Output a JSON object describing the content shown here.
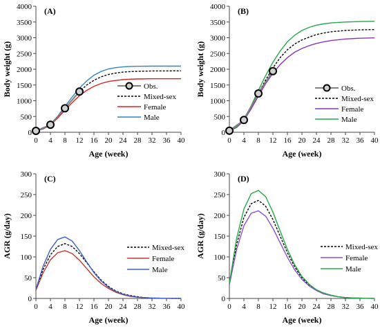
{
  "chart_data": [
    {
      "panel_label": "(A)",
      "type": "line",
      "xlabel": "Age (week)",
      "ylabel": "Body weight (g)",
      "xlim": [
        0,
        40
      ],
      "ylim": [
        0,
        4000
      ],
      "xticks": [
        "0",
        "4",
        "8",
        "12",
        "16",
        "20",
        "24",
        "28",
        "32",
        "36",
        "40"
      ],
      "yticks": [
        "0",
        "500",
        "1000",
        "1500",
        "2000",
        "2500",
        "3000",
        "3500",
        "4000"
      ],
      "legend_position": "bottom-right",
      "observations": {
        "name": "Obs.",
        "x": [
          0,
          4,
          8,
          12
        ],
        "y": [
          45,
          240,
          760,
          1290
        ],
        "color": "#808080"
      },
      "series": [
        {
          "name": "Mixed-sex",
          "x": [
            0,
            2,
            4,
            6,
            8,
            10,
            12,
            14,
            16,
            18,
            20,
            22,
            24,
            26,
            28,
            32,
            36,
            40
          ],
          "y": [
            45,
            110,
            240,
            480,
            760,
            1030,
            1290,
            1500,
            1650,
            1760,
            1835,
            1880,
            1910,
            1925,
            1935,
            1945,
            1948,
            1950
          ],
          "color": "#000000",
          "dash": true
        },
        {
          "name": "Female",
          "x": [
            0,
            2,
            4,
            6,
            8,
            10,
            12,
            14,
            16,
            18,
            20,
            22,
            24,
            26,
            28,
            32,
            36,
            40
          ],
          "y": [
            45,
            105,
            230,
            450,
            700,
            940,
            1160,
            1330,
            1460,
            1550,
            1610,
            1645,
            1670,
            1685,
            1692,
            1698,
            1700,
            1700
          ],
          "color": "#e02020",
          "dash": false
        },
        {
          "name": "Male",
          "x": [
            0,
            2,
            4,
            6,
            8,
            10,
            12,
            14,
            16,
            18,
            20,
            22,
            24,
            26,
            28,
            32,
            36,
            40
          ],
          "y": [
            45,
            115,
            255,
            510,
            820,
            1120,
            1400,
            1630,
            1810,
            1930,
            2010,
            2050,
            2075,
            2090,
            2095,
            2100,
            2100,
            2100
          ],
          "color": "#2f86c0",
          "dash": false
        }
      ]
    },
    {
      "panel_label": "(B)",
      "type": "line",
      "xlabel": "Age (week)",
      "ylabel": "Body weight (g)",
      "xlim": [
        0,
        40
      ],
      "ylim": [
        0,
        4000
      ],
      "xticks": [
        "0",
        "4",
        "8",
        "12",
        "16",
        "20",
        "24",
        "28",
        "32",
        "36",
        "40"
      ],
      "yticks": [
        "0",
        "500",
        "1000",
        "1500",
        "2000",
        "2500",
        "3000",
        "3500",
        "4000"
      ],
      "legend_position": "bottom-right",
      "observations": {
        "name": "Obs.",
        "x": [
          0,
          4,
          8,
          12
        ],
        "y": [
          50,
          390,
          1230,
          1940
        ],
        "color": "#808080"
      },
      "series": [
        {
          "name": "Mixed-sex",
          "x": [
            0,
            2,
            4,
            6,
            8,
            10,
            12,
            14,
            16,
            18,
            20,
            22,
            24,
            26,
            28,
            32,
            36,
            40
          ],
          "y": [
            50,
            160,
            390,
            780,
            1230,
            1660,
            2040,
            2370,
            2620,
            2800,
            2930,
            3020,
            3100,
            3150,
            3190,
            3230,
            3250,
            3260
          ],
          "color": "#000000",
          "dash": true
        },
        {
          "name": "Female",
          "x": [
            0,
            2,
            4,
            6,
            8,
            10,
            12,
            14,
            16,
            18,
            20,
            22,
            24,
            26,
            28,
            32,
            36,
            40
          ],
          "y": [
            50,
            150,
            370,
            740,
            1150,
            1540,
            1870,
            2150,
            2370,
            2540,
            2660,
            2750,
            2820,
            2870,
            2910,
            2960,
            2985,
            2995
          ],
          "color": "#8a35b8",
          "dash": false
        },
        {
          "name": "Male",
          "x": [
            0,
            2,
            4,
            6,
            8,
            10,
            12,
            14,
            16,
            18,
            20,
            22,
            24,
            26,
            28,
            32,
            36,
            40
          ],
          "y": [
            50,
            170,
            420,
            840,
            1330,
            1800,
            2220,
            2580,
            2870,
            3080,
            3230,
            3330,
            3400,
            3440,
            3470,
            3500,
            3515,
            3520
          ],
          "color": "#22aa44",
          "dash": false
        }
      ]
    },
    {
      "panel_label": "(C)",
      "type": "line",
      "xlabel": "Age (week)",
      "ylabel": "AGR (g/day)",
      "xlim": [
        0,
        40
      ],
      "ylim": [
        0,
        300
      ],
      "xticks": [
        "0",
        "4",
        "8",
        "12",
        "16",
        "20",
        "24",
        "28",
        "32",
        "36",
        "40"
      ],
      "yticks": [
        "0",
        "50",
        "100",
        "150",
        "200",
        "250",
        "300"
      ],
      "legend_position": "right",
      "series": [
        {
          "name": "Mixed-sex",
          "x": [
            0,
            2,
            4,
            6,
            8,
            10,
            12,
            14,
            16,
            18,
            20,
            22,
            24,
            26,
            28,
            30,
            32,
            34,
            36,
            38,
            40
          ],
          "y": [
            22,
            70,
            105,
            125,
            132,
            125,
            108,
            86,
            64,
            44,
            29,
            18,
            11,
            7,
            4,
            2,
            1,
            0.6,
            0.3,
            0.2,
            0.1
          ],
          "color": "#000000",
          "dash": true
        },
        {
          "name": "Female",
          "x": [
            0,
            2,
            4,
            6,
            8,
            10,
            12,
            14,
            16,
            18,
            20,
            22,
            24,
            26,
            28,
            30,
            32,
            34,
            36,
            38,
            40
          ],
          "y": [
            20,
            62,
            93,
            110,
            115,
            108,
            92,
            72,
            52,
            36,
            24,
            15,
            9,
            5,
            3,
            2,
            1,
            0.5,
            0.3,
            0.2,
            0.1
          ],
          "color": "#c0392b",
          "dash": false
        },
        {
          "name": "Male",
          "x": [
            0,
            2,
            4,
            6,
            8,
            10,
            12,
            14,
            16,
            18,
            20,
            22,
            24,
            26,
            28,
            30,
            32,
            34,
            36,
            38,
            40
          ],
          "y": [
            22,
            78,
            118,
            142,
            148,
            138,
            115,
            88,
            62,
            42,
            27,
            17,
            10,
            6,
            3,
            2,
            1,
            0.6,
            0.3,
            0.2,
            0.1
          ],
          "color": "#3a5fc8",
          "dash": false
        }
      ]
    },
    {
      "panel_label": "(D)",
      "type": "line",
      "xlabel": "Age (week)",
      "ylabel": "AGR (g/day)",
      "xlim": [
        0,
        40
      ],
      "ylim": [
        0,
        300
      ],
      "xticks": [
        "0",
        "4",
        "8",
        "12",
        "16",
        "20",
        "24",
        "28",
        "32",
        "36",
        "40"
      ],
      "yticks": [
        "0",
        "50",
        "100",
        "150",
        "200",
        "250",
        "300"
      ],
      "legend_position": "right",
      "series": [
        {
          "name": "Mixed-sex",
          "x": [
            0,
            2,
            4,
            6,
            8,
            10,
            12,
            14,
            16,
            18,
            20,
            22,
            24,
            26,
            28,
            30,
            32,
            34,
            36,
            38,
            40
          ],
          "y": [
            35,
            130,
            195,
            228,
            236,
            222,
            190,
            150,
            110,
            76,
            50,
            32,
            20,
            12,
            7,
            4,
            2,
            1.2,
            0.6,
            0.3,
            0.1
          ],
          "color": "#000000",
          "dash": true
        },
        {
          "name": "Female",
          "x": [
            0,
            2,
            4,
            6,
            8,
            10,
            12,
            14,
            16,
            18,
            20,
            22,
            24,
            26,
            28,
            30,
            32,
            34,
            36,
            38,
            40
          ],
          "y": [
            33,
            118,
            175,
            205,
            211,
            198,
            169,
            134,
            99,
            69,
            46,
            30,
            19,
            11,
            7,
            4,
            2,
            1.2,
            0.6,
            0.3,
            0.1
          ],
          "color": "#8a4fd0",
          "dash": false
        },
        {
          "name": "Male",
          "x": [
            0,
            2,
            4,
            6,
            8,
            10,
            12,
            14,
            16,
            18,
            20,
            22,
            24,
            26,
            28,
            30,
            32,
            34,
            36,
            38,
            40
          ],
          "y": [
            36,
            145,
            215,
            252,
            260,
            245,
            208,
            162,
            118,
            81,
            53,
            34,
            21,
            13,
            8,
            4,
            2,
            1.2,
            0.6,
            0.3,
            0.1
          ],
          "color": "#22aa44",
          "dash": false
        }
      ]
    }
  ]
}
